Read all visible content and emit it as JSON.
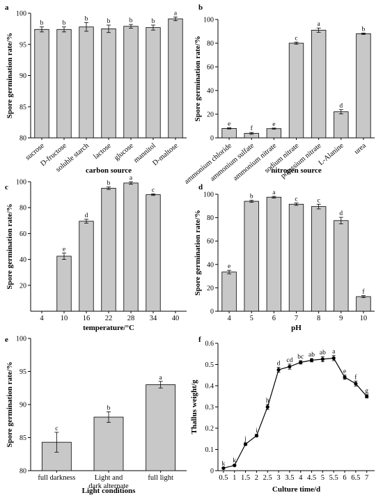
{
  "chart_data": [
    {
      "panel": "a",
      "type": "bar",
      "ylabel": "Spore germination rate/%",
      "xlabel": "carbon source",
      "ylim": [
        80,
        100
      ],
      "yticks": [
        80,
        85,
        90,
        95,
        100
      ],
      "categories": [
        "sucrose",
        "D-fructose",
        "soluble starch",
        "lactose",
        "glucose",
        "mannitol",
        "D-maltose"
      ],
      "values": [
        97.4,
        97.4,
        97.8,
        97.5,
        97.9,
        97.7,
        99.1
      ],
      "errors": [
        0.4,
        0.4,
        0.7,
        0.6,
        0.3,
        0.4,
        0.3
      ],
      "letters": [
        "b",
        "b",
        "b",
        "b",
        "b",
        "b",
        "a"
      ]
    },
    {
      "panel": "b",
      "type": "bar",
      "ylabel": "Spore germination rate/%",
      "xlabel": "nitrogen source",
      "ylim": [
        0,
        100
      ],
      "yticks": [
        0,
        20,
        40,
        60,
        80,
        100
      ],
      "categories": [
        "ammonium chloride",
        "ammonium sulfate",
        "ammonium nitrate",
        "sodium nitrate",
        "potassium nitrate",
        "L-Alanine",
        "urea"
      ],
      "values": [
        8,
        3.8,
        7.8,
        80,
        91,
        22,
        88
      ],
      "errors": [
        0.5,
        0.8,
        0.5,
        0.8,
        1.8,
        1.8,
        0.6
      ],
      "letters": [
        "e",
        "f",
        "e",
        "c",
        "a",
        "d",
        "b"
      ]
    },
    {
      "panel": "c",
      "type": "bar",
      "ylabel": "Spore germination rate/%",
      "xlabel": "temperature/°C",
      "ylim": [
        0,
        100
      ],
      "yticks": [
        20,
        40,
        60,
        80,
        100
      ],
      "categories": [
        "4",
        "10",
        "16",
        "22",
        "28",
        "34",
        "40"
      ],
      "values": [
        0,
        42.5,
        69.5,
        95,
        99,
        90,
        0
      ],
      "errors": [
        0,
        2.5,
        1.5,
        1.0,
        1.0,
        0.6,
        0
      ],
      "letters": [
        "",
        "e",
        "d",
        "b",
        "a",
        "c",
        ""
      ]
    },
    {
      "panel": "d",
      "type": "bar",
      "ylabel": "Spore germination rate/%",
      "xlabel": "pH",
      "ylim": [
        0,
        100
      ],
      "yticks": [
        0,
        20,
        40,
        60,
        80,
        100
      ],
      "categories": [
        "4",
        "5",
        "6",
        "7",
        "8",
        "9",
        "10"
      ],
      "values": [
        33.5,
        94,
        97.5,
        91.5,
        89.5,
        77.5,
        12.5
      ],
      "errors": [
        1.5,
        0.8,
        0.7,
        1.0,
        2.0,
        2.8,
        0.8
      ],
      "letters": [
        "e",
        "b",
        "a",
        "c",
        "c",
        "d",
        "f"
      ]
    },
    {
      "panel": "e",
      "type": "bar",
      "ylabel": "Spore germination rate/%",
      "xlabel": "Light conditions",
      "ylim": [
        80,
        100
      ],
      "yticks": [
        80,
        85,
        90,
        95,
        100
      ],
      "categories": [
        "full darkness",
        "Light and dark alternate",
        "full light"
      ],
      "values": [
        84.3,
        88.1,
        93.0
      ],
      "errors": [
        1.5,
        0.8,
        0.5
      ],
      "letters": [
        "c",
        "b",
        "a"
      ]
    },
    {
      "panel": "f",
      "type": "line",
      "ylabel": "Thallus weight/g",
      "xlabel": "Culture time/d",
      "ylim": [
        0,
        0.6
      ],
      "yticks": [
        "0",
        "0.1",
        "0.2",
        "0.3",
        "0.4",
        "0.5",
        "0.6"
      ],
      "x": [
        "0.5",
        "1",
        "1.5",
        "2",
        "2.5",
        "3",
        "3.5",
        "4",
        "4.5",
        "5",
        "5.5",
        "6",
        "6.5",
        "7"
      ],
      "values": [
        0.012,
        0.025,
        0.125,
        0.165,
        0.3,
        0.475,
        0.49,
        0.51,
        0.52,
        0.525,
        0.53,
        0.44,
        0.41,
        0.35
      ],
      "errors": [
        0.003,
        0.004,
        0.006,
        0.006,
        0.012,
        0.012,
        0.012,
        0.008,
        0.008,
        0.012,
        0.012,
        0.01,
        0.012,
        0.008
      ],
      "letters": [
        "k",
        "k",
        "j",
        "i",
        "h",
        "d",
        "cd",
        "bc",
        "ab",
        "ab",
        "a",
        "e",
        "f",
        "g"
      ]
    }
  ]
}
